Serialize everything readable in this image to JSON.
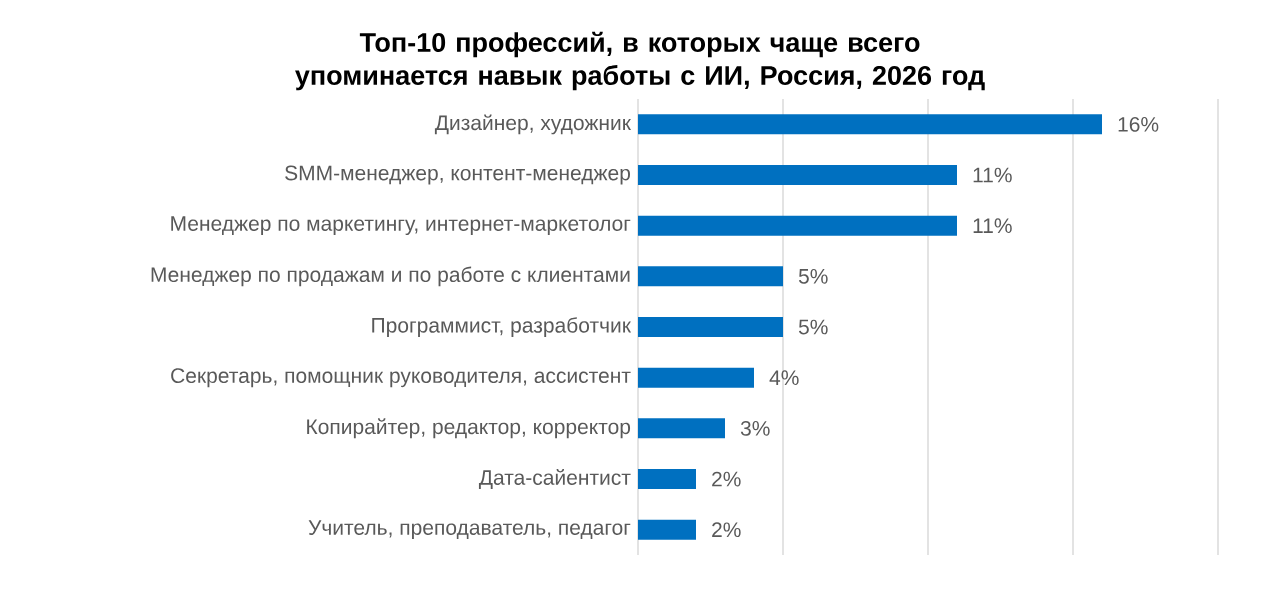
{
  "chart_data": {
    "type": "bar",
    "orientation": "horizontal",
    "title": "Топ-10 профессий, в которых чаще всего упоминается навык работы с ИИ, Россия, 2026 год",
    "categories": [
      "Дизайнер, художник",
      "SMM-менеджер, контент-менеджер",
      "Менеджер по маркетингу, интернет-маркетолог",
      "Менеджер по продажам и по работе с клиентами",
      "Программист, разработчик",
      "Секретарь, помощник руководителя, ассистент",
      "Копирайтер, редактор, корректор",
      "Дата-сайентист",
      "Учитель, преподаватель, педагог"
    ],
    "values": [
      16,
      11,
      11,
      5,
      5,
      4,
      3,
      2,
      2
    ],
    "value_labels": [
      "16%",
      "11%",
      "11%",
      "5%",
      "5%",
      "4%",
      "3%",
      "2%",
      "2%"
    ],
    "color": "#0070c0",
    "xlim": [
      0,
      20
    ],
    "xticks": [
      {
        "value": 0,
        "label": null
      },
      {
        "value": 5,
        "label": null
      },
      {
        "value": 10,
        "label": null
      },
      {
        "value": 15,
        "label": null
      },
      {
        "value": 20,
        "label": null
      }
    ],
    "grid": "x",
    "tick_labels": "y"
  }
}
